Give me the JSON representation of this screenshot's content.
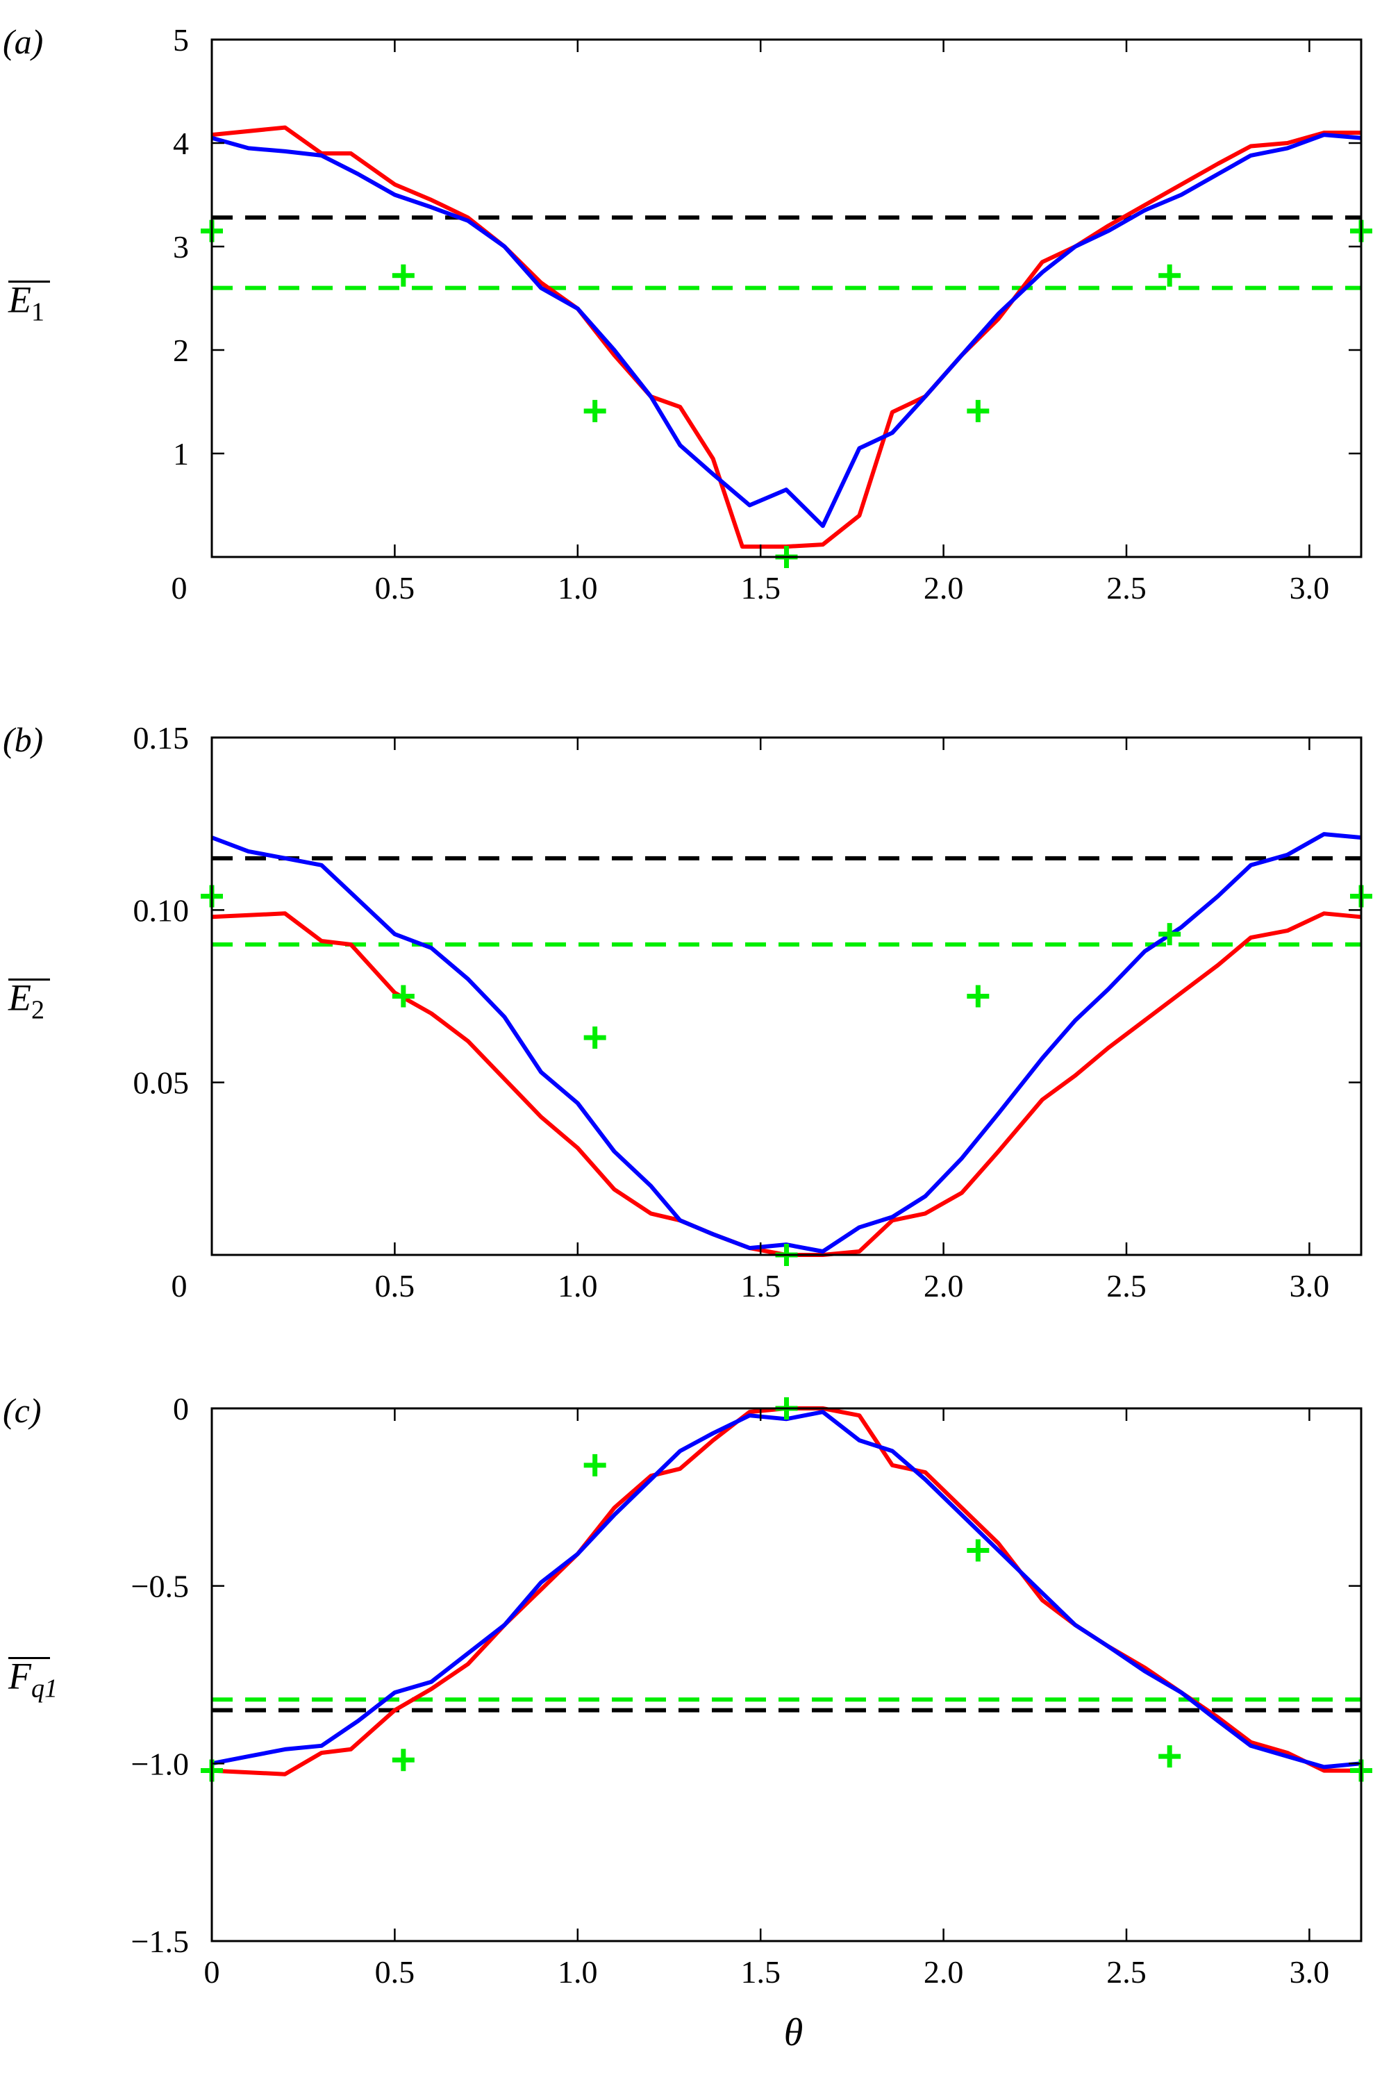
{
  "chart_data": [
    {
      "type": "line",
      "panel_label": "(a)",
      "ylabel": "E",
      "ylabel_sub": "1",
      "xlabel": "",
      "xlim": [
        0,
        3.1416
      ],
      "ylim": [
        0,
        5
      ],
      "xticks": [
        {
          "value": 0,
          "label": "0"
        },
        {
          "value": 0.5,
          "label": "0.5"
        },
        {
          "value": 1.0,
          "label": "1.0"
        },
        {
          "value": 1.5,
          "label": "1.5"
        },
        {
          "value": 2.0,
          "label": "2.0"
        },
        {
          "value": 2.5,
          "label": "2.5"
        },
        {
          "value": 3.0,
          "label": "3.0"
        }
      ],
      "yticks": [
        {
          "value": 1,
          "label": "1"
        },
        {
          "value": 2,
          "label": "2"
        },
        {
          "value": 3,
          "label": "3"
        },
        {
          "value": 4,
          "label": "4"
        },
        {
          "value": 5,
          "label": "5"
        }
      ],
      "series": [
        {
          "name": "red",
          "color": "#ff0000",
          "x": [
            0,
            0.2,
            0.3,
            0.38,
            0.5,
            0.6,
            0.7,
            0.8,
            0.9,
            1.0,
            1.1,
            1.2,
            1.28,
            1.37,
            1.45,
            1.57,
            1.67,
            1.77,
            1.86,
            1.95,
            2.05,
            2.15,
            2.27,
            2.36,
            2.45,
            2.55,
            2.65,
            2.75,
            2.84,
            2.94,
            3.04,
            3.14
          ],
          "y": [
            4.08,
            4.15,
            3.9,
            3.9,
            3.6,
            3.45,
            3.28,
            3.0,
            2.65,
            2.4,
            1.95,
            1.55,
            1.45,
            0.95,
            0.1,
            0.1,
            0.12,
            0.4,
            1.4,
            1.55,
            1.95,
            2.3,
            2.85,
            3.0,
            3.2,
            3.4,
            3.6,
            3.8,
            3.97,
            4.0,
            4.1,
            4.1
          ]
        },
        {
          "name": "blue",
          "color": "#0000ff",
          "x": [
            0,
            0.1,
            0.2,
            0.3,
            0.4,
            0.5,
            0.6,
            0.7,
            0.8,
            0.9,
            1.0,
            1.1,
            1.2,
            1.28,
            1.37,
            1.47,
            1.57,
            1.67,
            1.77,
            1.86,
            1.95,
            2.05,
            2.15,
            2.27,
            2.36,
            2.45,
            2.55,
            2.65,
            2.75,
            2.84,
            2.94,
            3.04,
            3.14
          ],
          "y": [
            4.05,
            3.95,
            3.92,
            3.88,
            3.7,
            3.5,
            3.38,
            3.25,
            3.0,
            2.6,
            2.4,
            2.0,
            1.55,
            1.08,
            0.8,
            0.5,
            0.65,
            0.3,
            1.05,
            1.2,
            1.55,
            1.95,
            2.35,
            2.75,
            3.0,
            3.15,
            3.35,
            3.5,
            3.7,
            3.88,
            3.95,
            4.08,
            4.05
          ]
        }
      ],
      "reference_lines": [
        {
          "name": "black-dashed",
          "color": "#000000",
          "y": 3.28
        },
        {
          "name": "green-dashed",
          "color": "#00ee00",
          "y": 2.6
        }
      ],
      "markers": {
        "color": "#00ee00",
        "x": [
          0,
          0.5236,
          1.0472,
          1.5708,
          2.0944,
          2.618,
          3.1416
        ],
        "y": [
          3.15,
          2.72,
          1.41,
          0.0,
          1.41,
          2.72,
          3.15
        ]
      }
    },
    {
      "type": "line",
      "panel_label": "(b)",
      "ylabel": "E",
      "ylabel_sub": "2",
      "xlabel": "",
      "xlim": [
        0,
        3.1416
      ],
      "ylim": [
        0,
        0.15
      ],
      "xticks": [
        {
          "value": 0,
          "label": "0"
        },
        {
          "value": 0.5,
          "label": "0.5"
        },
        {
          "value": 1.0,
          "label": "1.0"
        },
        {
          "value": 1.5,
          "label": "1.5"
        },
        {
          "value": 2.0,
          "label": "2.0"
        },
        {
          "value": 2.5,
          "label": "2.5"
        },
        {
          "value": 3.0,
          "label": "3.0"
        }
      ],
      "yticks": [
        {
          "value": 0.05,
          "label": "0.05"
        },
        {
          "value": 0.1,
          "label": "0.10"
        },
        {
          "value": 0.15,
          "label": "0.15"
        }
      ],
      "series": [
        {
          "name": "red",
          "color": "#ff0000",
          "x": [
            0,
            0.2,
            0.3,
            0.38,
            0.5,
            0.6,
            0.7,
            0.8,
            0.9,
            1.0,
            1.1,
            1.2,
            1.28,
            1.37,
            1.47,
            1.57,
            1.67,
            1.77,
            1.86,
            1.95,
            2.05,
            2.15,
            2.27,
            2.36,
            2.45,
            2.55,
            2.65,
            2.75,
            2.84,
            2.94,
            3.04,
            3.14
          ],
          "y": [
            0.098,
            0.099,
            0.091,
            0.09,
            0.076,
            0.07,
            0.062,
            0.051,
            0.04,
            0.031,
            0.019,
            0.012,
            0.01,
            0.006,
            0.002,
            0.0,
            0.0,
            0.001,
            0.01,
            0.012,
            0.018,
            0.03,
            0.045,
            0.052,
            0.06,
            0.068,
            0.076,
            0.084,
            0.092,
            0.094,
            0.099,
            0.098
          ]
        },
        {
          "name": "blue",
          "color": "#0000ff",
          "x": [
            0,
            0.1,
            0.2,
            0.3,
            0.4,
            0.5,
            0.6,
            0.7,
            0.8,
            0.9,
            1.0,
            1.1,
            1.2,
            1.28,
            1.37,
            1.47,
            1.57,
            1.67,
            1.77,
            1.86,
            1.95,
            2.05,
            2.15,
            2.27,
            2.36,
            2.45,
            2.55,
            2.65,
            2.75,
            2.84,
            2.94,
            3.04,
            3.14
          ],
          "y": [
            0.121,
            0.117,
            0.115,
            0.113,
            0.103,
            0.093,
            0.089,
            0.08,
            0.069,
            0.053,
            0.044,
            0.03,
            0.02,
            0.01,
            0.006,
            0.002,
            0.003,
            0.001,
            0.008,
            0.011,
            0.017,
            0.028,
            0.041,
            0.057,
            0.068,
            0.077,
            0.088,
            0.095,
            0.104,
            0.113,
            0.116,
            0.122,
            0.121
          ]
        }
      ],
      "reference_lines": [
        {
          "name": "black-dashed",
          "color": "#000000",
          "y": 0.115
        },
        {
          "name": "green-dashed",
          "color": "#00ee00",
          "y": 0.09
        }
      ],
      "markers": {
        "color": "#00ee00",
        "x": [
          0,
          0.5236,
          1.0472,
          1.5708,
          2.0944,
          2.618,
          3.1416
        ],
        "y": [
          0.104,
          0.075,
          0.063,
          0.0,
          0.075,
          0.093,
          0.104
        ]
      }
    },
    {
      "type": "line",
      "panel_label": "(c)",
      "ylabel": "F",
      "ylabel_sub": "q1",
      "xlabel": "θ",
      "xlim": [
        0,
        3.1416
      ],
      "ylim": [
        -1.5,
        0
      ],
      "xticks": [
        {
          "value": 0,
          "label": "0"
        },
        {
          "value": 0.5,
          "label": "0.5"
        },
        {
          "value": 1.0,
          "label": "1.0"
        },
        {
          "value": 1.5,
          "label": "1.5"
        },
        {
          "value": 2.0,
          "label": "2.0"
        },
        {
          "value": 2.5,
          "label": "2.5"
        },
        {
          "value": 3.0,
          "label": "3.0"
        }
      ],
      "yticks": [
        {
          "value": -1.5,
          "label": "−1.5"
        },
        {
          "value": -1.0,
          "label": "−1.0"
        },
        {
          "value": -0.5,
          "label": "−0.5"
        },
        {
          "value": 0,
          "label": "0"
        }
      ],
      "series": [
        {
          "name": "red",
          "color": "#ff0000",
          "x": [
            0,
            0.2,
            0.3,
            0.38,
            0.5,
            0.6,
            0.7,
            0.8,
            0.9,
            1.0,
            1.1,
            1.2,
            1.28,
            1.37,
            1.47,
            1.57,
            1.67,
            1.77,
            1.86,
            1.95,
            2.05,
            2.15,
            2.27,
            2.36,
            2.45,
            2.55,
            2.65,
            2.75,
            2.84,
            2.94,
            3.04,
            3.14
          ],
          "y": [
            -1.02,
            -1.03,
            -0.97,
            -0.96,
            -0.85,
            -0.79,
            -0.72,
            -0.61,
            -0.51,
            -0.41,
            -0.28,
            -0.19,
            -0.17,
            -0.09,
            -0.01,
            0.0,
            0.0,
            -0.02,
            -0.16,
            -0.18,
            -0.28,
            -0.38,
            -0.54,
            -0.61,
            -0.67,
            -0.73,
            -0.8,
            -0.87,
            -0.94,
            -0.97,
            -1.02,
            -1.02
          ]
        },
        {
          "name": "blue",
          "color": "#0000ff",
          "x": [
            0,
            0.1,
            0.2,
            0.3,
            0.4,
            0.5,
            0.6,
            0.7,
            0.8,
            0.9,
            1.0,
            1.1,
            1.2,
            1.28,
            1.37,
            1.47,
            1.57,
            1.67,
            1.77,
            1.86,
            1.95,
            2.05,
            2.15,
            2.27,
            2.36,
            2.45,
            2.55,
            2.65,
            2.75,
            2.84,
            2.94,
            3.04,
            3.14
          ],
          "y": [
            -1.0,
            -0.98,
            -0.96,
            -0.95,
            -0.88,
            -0.8,
            -0.77,
            -0.69,
            -0.61,
            -0.49,
            -0.41,
            -0.3,
            -0.2,
            -0.12,
            -0.07,
            -0.02,
            -0.03,
            -0.01,
            -0.09,
            -0.12,
            -0.2,
            -0.3,
            -0.4,
            -0.52,
            -0.61,
            -0.67,
            -0.74,
            -0.8,
            -0.88,
            -0.95,
            -0.98,
            -1.01,
            -1.0
          ]
        }
      ],
      "reference_lines": [
        {
          "name": "black-dashed",
          "color": "#000000",
          "y": -0.85
        },
        {
          "name": "green-dashed",
          "color": "#00ee00",
          "y": -0.82
        }
      ],
      "markers": {
        "color": "#00ee00",
        "x": [
          0,
          0.5236,
          1.0472,
          1.5708,
          2.0944,
          2.618,
          3.1416
        ],
        "y": [
          -1.02,
          -0.99,
          -0.16,
          0.0,
          -0.4,
          -0.98,
          -1.02
        ]
      }
    }
  ]
}
